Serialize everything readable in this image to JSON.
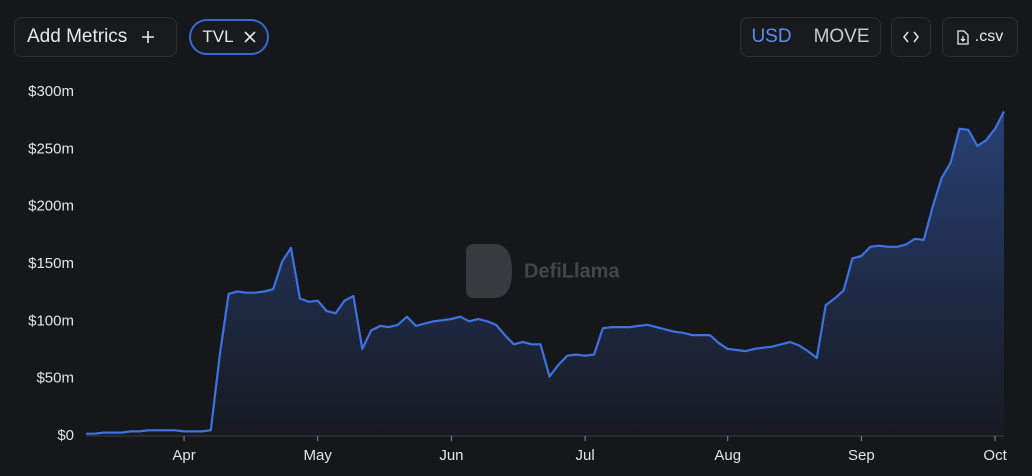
{
  "ui": {
    "add_metrics": "Add Metrics",
    "metric_chip": "TVL",
    "currency_options": [
      "USD",
      "MOVE"
    ],
    "csv": ".csv",
    "watermark": "DefiLlama"
  },
  "chart_data": {
    "type": "area",
    "color": "#3d72e0",
    "categories": [
      null,
      null,
      null,
      null,
      null,
      null,
      null,
      null,
      null,
      null,
      null,
      "Apr",
      null,
      null,
      null,
      null,
      null,
      null,
      null,
      null,
      null,
      null,
      null,
      null,
      null,
      null,
      "May",
      null,
      null,
      null,
      null,
      null,
      null,
      null,
      null,
      null,
      null,
      null,
      null,
      null,
      null,
      "Jun",
      null,
      null,
      null,
      null,
      null,
      null,
      null,
      null,
      null,
      null,
      null,
      null,
      null,
      null,
      "Jul",
      null,
      null,
      null,
      null,
      null,
      null,
      null,
      null,
      null,
      null,
      null,
      null,
      null,
      null,
      null,
      "Aug",
      null,
      null,
      null,
      null,
      null,
      null,
      null,
      null,
      null,
      null,
      null,
      null,
      null,
      null,
      "Sep",
      null,
      null,
      null,
      null,
      null,
      null,
      null,
      null,
      null,
      null,
      null,
      null,
      null,
      null,
      "Oct",
      null
    ],
    "values": [
      2,
      2,
      3,
      3,
      3,
      4,
      4,
      5,
      5,
      5,
      5,
      4,
      4,
      4,
      5,
      70,
      124,
      126,
      125,
      125,
      126,
      128,
      152,
      164,
      120,
      117,
      118,
      109,
      107,
      118,
      122,
      76,
      92,
      96,
      95,
      97,
      104,
      96,
      98,
      100,
      101,
      102,
      104,
      100,
      102,
      100,
      97,
      88,
      80,
      82,
      80,
      80,
      52,
      62,
      70,
      71,
      70,
      71,
      94,
      95,
      95,
      95,
      96,
      97,
      95,
      93,
      91,
      90,
      88,
      88,
      88,
      81,
      76,
      75,
      74,
      76,
      77,
      78,
      80,
      82,
      79,
      74,
      68,
      114,
      120,
      127,
      155,
      157,
      165,
      166,
      165,
      165,
      167,
      172,
      171,
      200,
      225,
      238,
      268,
      267,
      253,
      258,
      268,
      283
    ],
    "ylim": [
      0,
      300
    ],
    "yticks": [
      {
        "value": 0,
        "label": "$0"
      },
      {
        "value": 50,
        "label": "$50m"
      },
      {
        "value": 100,
        "label": "$100m"
      },
      {
        "value": 150,
        "label": "$150m"
      },
      {
        "value": 200,
        "label": "$200m"
      },
      {
        "value": 250,
        "label": "$250m"
      },
      {
        "value": 300,
        "label": "$300m"
      }
    ]
  }
}
